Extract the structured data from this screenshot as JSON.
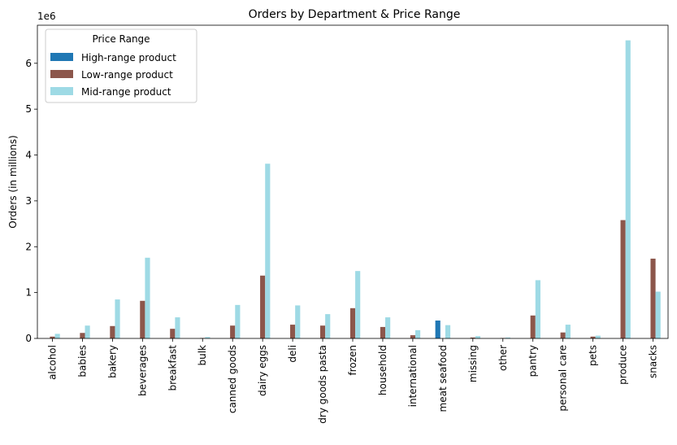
{
  "chart_data": {
    "type": "bar",
    "title": "Orders by Department & Price Range",
    "xlabel": "",
    "ylabel": "Orders (in millions)",
    "y_offset_label": "1e6",
    "ylim": [
      0,
      6.83
    ],
    "yticks": [
      0,
      1,
      2,
      3,
      4,
      5,
      6
    ],
    "ytick_labels": [
      "0",
      "1",
      "2",
      "3",
      "4",
      "5",
      "6"
    ],
    "grid": false,
    "legend": {
      "title": "Price Range",
      "placement": "top-left",
      "entries": [
        "High-range product",
        "Low-range product",
        "Mid-range product"
      ]
    },
    "categories": [
      "alcohol",
      "babies",
      "bakery",
      "beverages",
      "breakfast",
      "bulk",
      "canned goods",
      "dairy eggs",
      "deli",
      "dry goods pasta",
      "frozen",
      "household",
      "international",
      "meat seafood",
      "missing",
      "other",
      "pantry",
      "personal care",
      "pets",
      "produce",
      "snacks"
    ],
    "series": [
      {
        "name": "High-range product",
        "color": "#1f77b4",
        "values": [
          0,
          0,
          0,
          0,
          0,
          0,
          0,
          0,
          0,
          0,
          0,
          0,
          0,
          0.39,
          0,
          0,
          0,
          0,
          0,
          0,
          0
        ]
      },
      {
        "name": "Low-range product",
        "color": "#8c564b",
        "values": [
          0.04,
          0.12,
          0.27,
          0.82,
          0.21,
          0.01,
          0.28,
          1.37,
          0.3,
          0.28,
          0.66,
          0.25,
          0.07,
          0,
          0.02,
          0.01,
          0.5,
          0.13,
          0.04,
          2.58,
          1.74
        ]
      },
      {
        "name": "Mid-range product",
        "color": "#9edae5",
        "values": [
          0.1,
          0.28,
          0.85,
          1.76,
          0.46,
          0.03,
          0.73,
          3.81,
          0.72,
          0.53,
          1.47,
          0.46,
          0.18,
          0.29,
          0.05,
          0.02,
          1.27,
          0.3,
          0.06,
          6.5,
          1.02
        ]
      }
    ]
  }
}
